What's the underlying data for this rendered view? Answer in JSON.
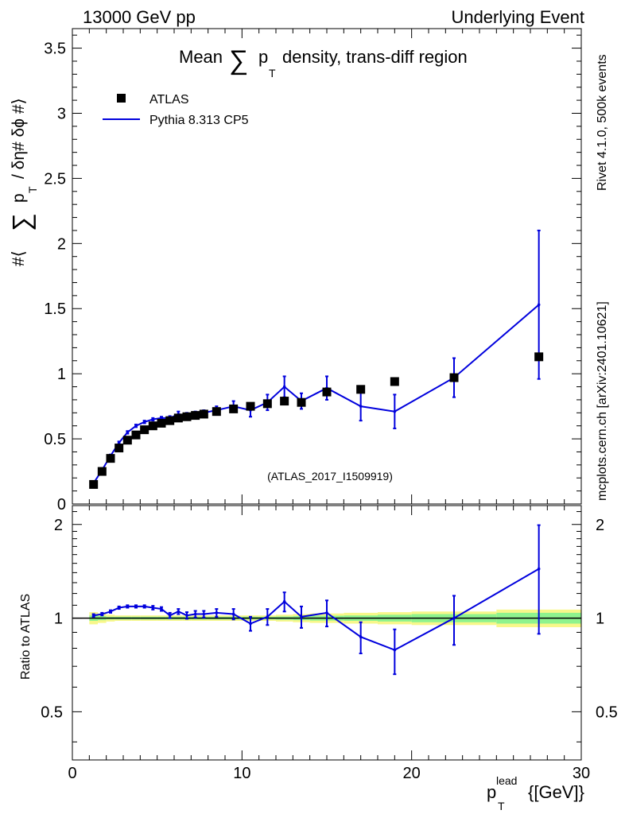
{
  "header": {
    "left": "13000 GeV pp",
    "right": "Underlying Event"
  },
  "side_labels": {
    "rivet": "Rivet 4.1.0,  500k events",
    "mcplots": "mcplots.cern.ch [arXiv:2401.10621]"
  },
  "colors": {
    "data": "#000000",
    "mc": "#0000dd",
    "band_inner": "#8ef38e",
    "band_outer": "#f7f78a",
    "watermark": "#999999",
    "side_text": "#888888"
  },
  "chart_data": [
    {
      "type": "scatter",
      "panel": "main",
      "title_parts": [
        "Mean",
        "∑",
        "p",
        "T",
        "density, trans-diff region"
      ],
      "ylabel_parts": [
        "#⟨",
        "∑",
        "p",
        "T",
        "/ δη# δϕ #⟩"
      ],
      "watermark": "(ATLAS_2017_I1509919)",
      "xlim": [
        0,
        30
      ],
      "ylim": [
        0,
        3.65
      ],
      "yticks": [
        0,
        0.5,
        1,
        1.5,
        2,
        2.5,
        3,
        3.5
      ],
      "ytick_labels": [
        "0",
        "0.5",
        "1",
        "1.5",
        "2",
        "2.5",
        "3",
        "3.5"
      ],
      "legend": {
        "position": "top-left",
        "entries": [
          "ATLAS",
          "Pythia 8.313 CP5"
        ]
      },
      "series": [
        {
          "name": "ATLAS",
          "style": "markers",
          "x": [
            1.25,
            1.75,
            2.25,
            2.75,
            3.25,
            3.75,
            4.25,
            4.75,
            5.25,
            5.75,
            6.25,
            6.75,
            7.25,
            7.75,
            8.5,
            9.5,
            10.5,
            11.5,
            12.5,
            13.5,
            15.0,
            17.0,
            19.0,
            22.5,
            27.5
          ],
          "y": [
            0.15,
            0.25,
            0.35,
            0.43,
            0.49,
            0.53,
            0.57,
            0.6,
            0.62,
            0.64,
            0.66,
            0.67,
            0.68,
            0.69,
            0.71,
            0.73,
            0.75,
            0.77,
            0.79,
            0.78,
            0.86,
            0.88,
            0.94,
            0.97,
            1.13
          ]
        },
        {
          "name": "Pythia 8.313 CP5",
          "style": "line",
          "x": [
            1.25,
            1.75,
            2.25,
            2.75,
            3.25,
            3.75,
            4.25,
            4.75,
            5.25,
            5.75,
            6.25,
            6.75,
            7.25,
            7.75,
            8.5,
            9.5,
            10.5,
            11.5,
            12.5,
            13.5,
            15.0,
            17.0,
            19.0,
            22.5,
            27.5
          ],
          "y": [
            0.16,
            0.26,
            0.37,
            0.47,
            0.55,
            0.6,
            0.63,
            0.65,
            0.66,
            0.66,
            0.69,
            0.68,
            0.69,
            0.7,
            0.72,
            0.75,
            0.72,
            0.78,
            0.9,
            0.79,
            0.89,
            0.75,
            0.71,
            0.97,
            1.53
          ],
          "yerr": [
            0.01,
            0.01,
            0.01,
            0.01,
            0.01,
            0.01,
            0.01,
            0.01,
            0.01,
            0.015,
            0.02,
            0.02,
            0.02,
            0.02,
            0.03,
            0.04,
            0.05,
            0.06,
            0.08,
            0.06,
            0.09,
            0.11,
            0.13,
            0.15,
            0.57
          ]
        }
      ]
    },
    {
      "type": "line",
      "panel": "ratio",
      "ylabel": "Ratio to ATLAS",
      "xlabel_parts": [
        "p",
        "T",
        "lead",
        "{[GeV]}"
      ],
      "xlim": [
        0,
        30
      ],
      "ylim": [
        0.35,
        2.3
      ],
      "xticks": [
        0,
        10,
        20,
        30
      ],
      "xtick_labels": [
        "0",
        "10",
        "20",
        "30"
      ],
      "yticks": [
        0.5,
        1,
        2
      ],
      "ytick_labels": [
        "0.5",
        "1",
        "2"
      ],
      "reference": 1.0,
      "band_edges": [
        1.0,
        1.5,
        2.0,
        2.5,
        3.0,
        3.5,
        4.0,
        4.5,
        5.0,
        5.5,
        6.0,
        6.5,
        7.0,
        7.5,
        8.0,
        9.0,
        10.0,
        11.0,
        12.0,
        13.0,
        14.0,
        16.0,
        18.0,
        20.0,
        25.0,
        30.0
      ],
      "band_outer": [
        0.045,
        0.035,
        0.025,
        0.02,
        0.02,
        0.02,
        0.02,
        0.02,
        0.02,
        0.02,
        0.02,
        0.02,
        0.02,
        0.02,
        0.02,
        0.02,
        0.02,
        0.02,
        0.025,
        0.03,
        0.035,
        0.04,
        0.045,
        0.05,
        0.065
      ],
      "band_inner": [
        0.02,
        0.015,
        0.01,
        0.01,
        0.01,
        0.01,
        0.01,
        0.01,
        0.01,
        0.01,
        0.01,
        0.01,
        0.01,
        0.01,
        0.01,
        0.01,
        0.01,
        0.01,
        0.012,
        0.015,
        0.018,
        0.02,
        0.025,
        0.03,
        0.04
      ],
      "series": [
        {
          "name": "Pythia 8.313 CP5",
          "x": [
            1.25,
            1.75,
            2.25,
            2.75,
            3.25,
            3.75,
            4.25,
            4.75,
            5.25,
            5.75,
            6.25,
            6.75,
            7.25,
            7.75,
            8.5,
            9.5,
            10.5,
            11.5,
            12.5,
            13.5,
            15.0,
            17.0,
            19.0,
            22.5,
            27.5
          ],
          "y": [
            1.02,
            1.03,
            1.05,
            1.08,
            1.09,
            1.09,
            1.09,
            1.08,
            1.07,
            1.02,
            1.05,
            1.02,
            1.03,
            1.03,
            1.04,
            1.03,
            0.96,
            1.01,
            1.13,
            1.01,
            1.04,
            0.87,
            0.79,
            1.0,
            1.44
          ],
          "yerr": [
            0.01,
            0.01,
            0.01,
            0.01,
            0.01,
            0.01,
            0.01,
            0.015,
            0.015,
            0.02,
            0.02,
            0.025,
            0.025,
            0.025,
            0.03,
            0.04,
            0.05,
            0.06,
            0.08,
            0.08,
            0.1,
            0.1,
            0.13,
            0.18,
            0.55
          ]
        }
      ]
    }
  ]
}
